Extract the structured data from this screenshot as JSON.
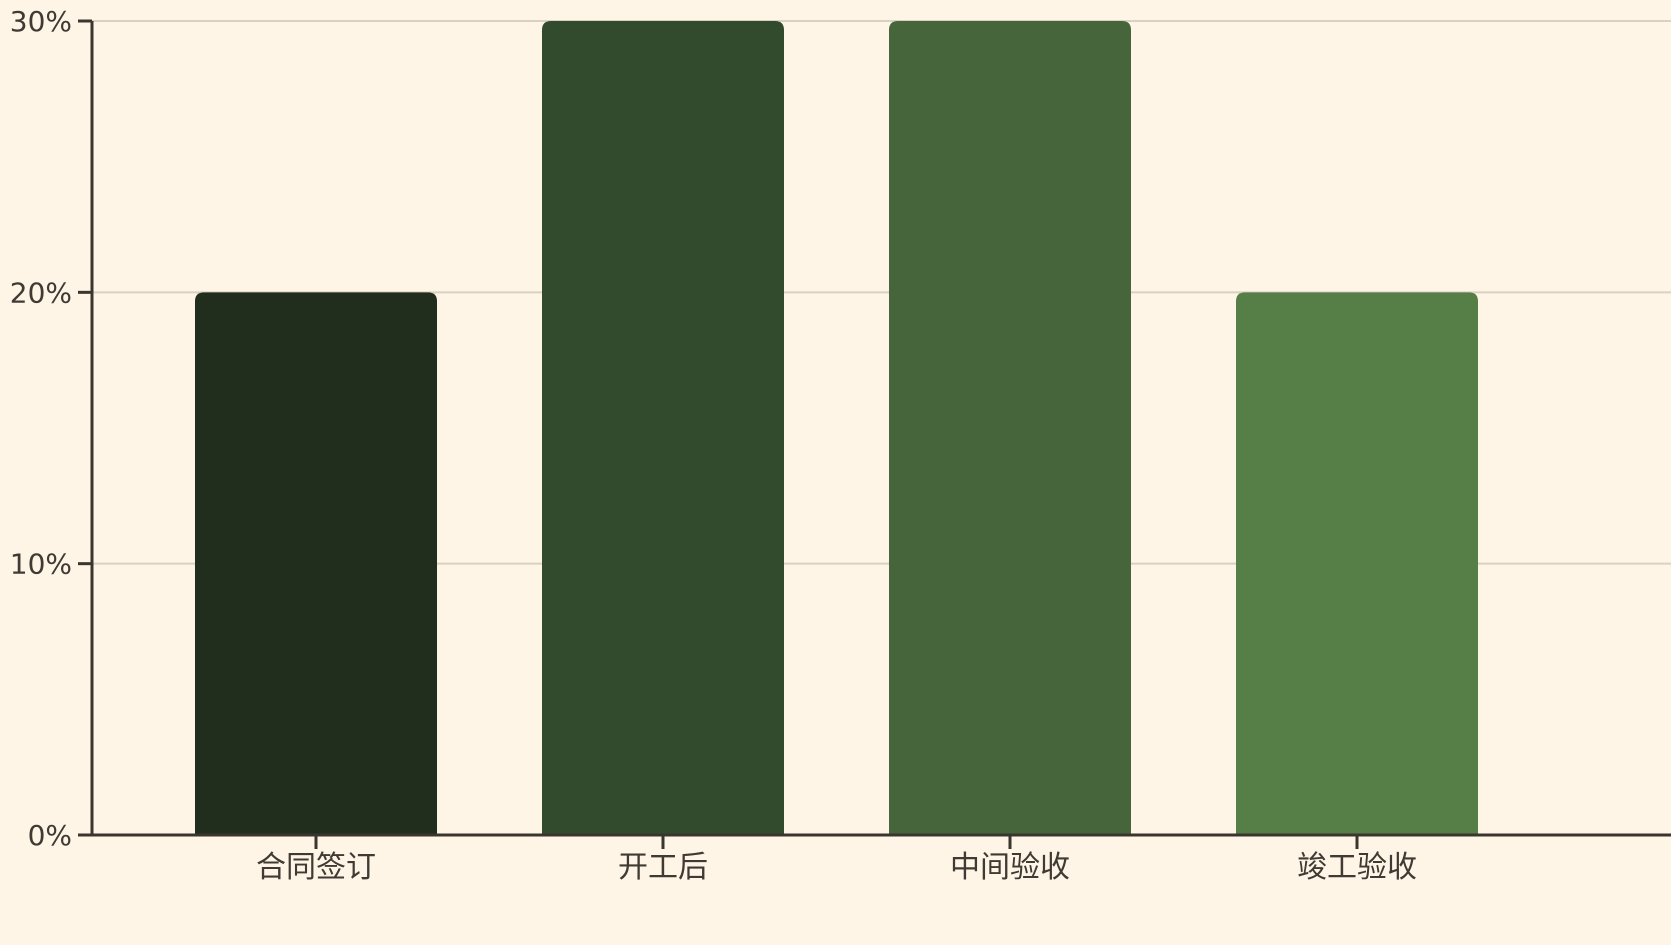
{
  "chart_data": {
    "type": "bar",
    "title": "",
    "xlabel": "",
    "ylabel": "",
    "categories": [
      "合同签订",
      "开工后",
      "中间验收",
      "竣工验收"
    ],
    "values": [
      20,
      30,
      30,
      20
    ],
    "value_unit": "%",
    "ylim": [
      0,
      30
    ],
    "yticks": [
      0,
      10,
      20,
      30
    ],
    "ytick_labels": [
      "0%",
      "10%",
      "20%",
      "30%"
    ],
    "grid": true,
    "legend": "none",
    "bar_colors": [
      "#212E1D",
      "#334B2D",
      "#46653B",
      "#567E47"
    ],
    "colors": {
      "background": "#FEF5E6",
      "axis": "#3A352E",
      "grid": "#D9D1C3",
      "text": "#3F3A33"
    }
  }
}
